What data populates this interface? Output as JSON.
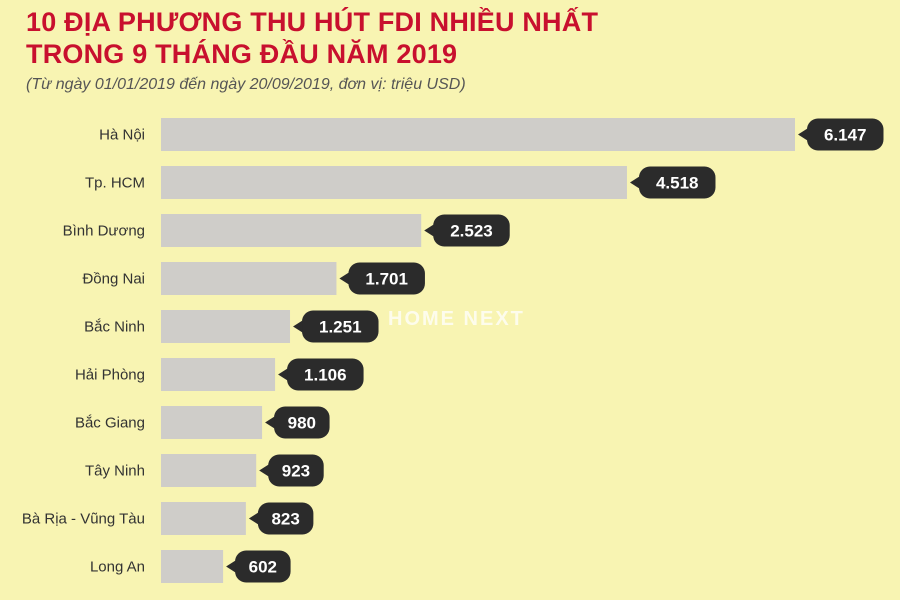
{
  "header": {
    "title_line1": "10 ĐỊA PHƯƠNG THU HÚT FDI NHIỀU NHẤT",
    "title_line2": "TRONG 9 THÁNG ĐẦU NĂM 2019",
    "subtitle": "(Từ ngày 01/01/2019 đến ngày 20/09/2019, đơn vị: triệu USD)"
  },
  "watermark": "HOME NEXT",
  "colors": {
    "background": "#f8f4b2",
    "title": "#c8102e",
    "bar": "#cfcdc9",
    "badge": "#2b2b2b"
  },
  "chart_data": {
    "type": "bar",
    "orientation": "horizontal",
    "title": "10 ĐỊA PHƯƠNG THU HÚT FDI NHIỀU NHẤT TRONG 9 THÁNG ĐẦU NĂM 2019",
    "subtitle": "(Từ ngày 01/01/2019 đến ngày 20/09/2019, đơn vị: triệu USD)",
    "categories": [
      "Hà Nội",
      "Tp. HCM",
      "Bình Dương",
      "Đồng Nai",
      "Bắc Ninh",
      "Hải Phòng",
      "Bắc Giang",
      "Tây Ninh",
      "Bà Rịa - Vũng Tàu",
      "Long An"
    ],
    "values": [
      6147,
      4518,
      2523,
      1701,
      1251,
      1106,
      980,
      923,
      823,
      602
    ],
    "value_labels": [
      "6.147",
      "4.518",
      "2.523",
      "1.701",
      "1.251",
      "1.106",
      "980",
      "923",
      "823",
      "602"
    ],
    "unit": "triệu USD",
    "xlim": [
      0,
      6147
    ],
    "grid": false,
    "legend": "none"
  }
}
